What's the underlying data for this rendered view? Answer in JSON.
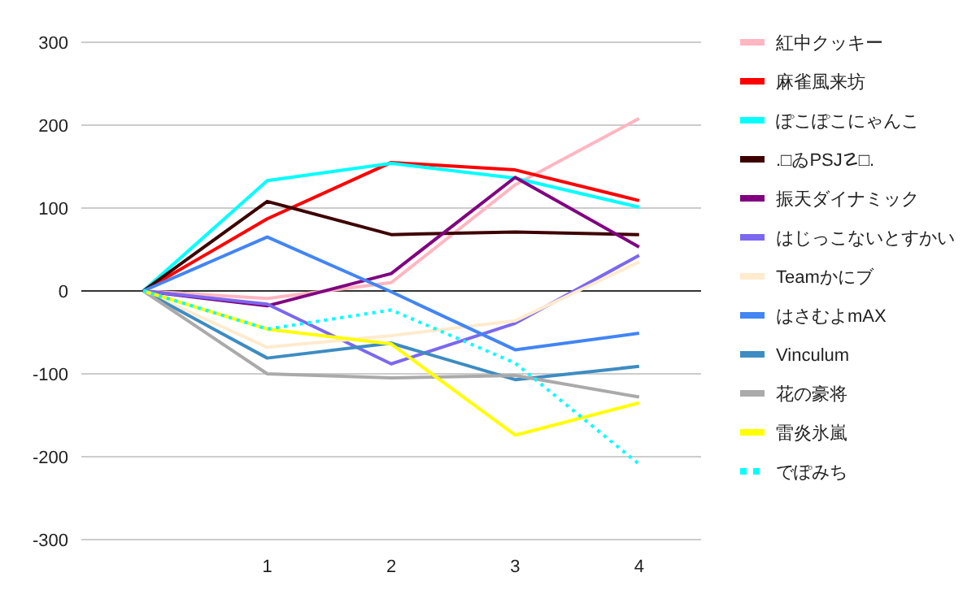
{
  "chart_data": {
    "type": "line",
    "categories": [
      null,
      "1",
      "2",
      "3",
      "4"
    ],
    "ylim": [
      -300,
      300
    ],
    "yticks": [
      -300,
      -200,
      -100,
      0,
      100,
      200,
      300
    ],
    "grid": "y",
    "legend": "right",
    "series": [
      {
        "name": "紅中クッキー",
        "color": "#ffb6c1",
        "values": [
          0,
          -9,
          10,
          128,
          208
        ]
      },
      {
        "name": "麻雀風来坊",
        "color": "#ff0000",
        "values": [
          0,
          87,
          155,
          146,
          109
        ]
      },
      {
        "name": "ぽこぽこにゃんこ",
        "color": "#00ffff",
        "values": [
          0,
          133,
          154,
          136,
          101
        ]
      },
      {
        "name": ".□ゐPSJ☡□.",
        "color": "#3d0000",
        "values": [
          0,
          108,
          68,
          71,
          68
        ]
      },
      {
        "name": "振天ダイナミック",
        "color": "#800080",
        "values": [
          0,
          -18,
          21,
          137,
          53
        ]
      },
      {
        "name": "はじっこないとすかい",
        "color": "#7b68ee",
        "values": [
          0,
          -16,
          -88,
          -39,
          43
        ]
      },
      {
        "name": "Teamかにブ",
        "color": "#ffebcd",
        "values": [
          0,
          -68,
          -54,
          -36,
          35
        ]
      },
      {
        "name": "はさむよmAX",
        "color": "#4285f4",
        "values": [
          0,
          65,
          -1,
          -71,
          -51
        ]
      },
      {
        "name": "Vinculum",
        "color": "#3d8cc2",
        "values": [
          0,
          -81,
          -63,
          -107,
          -91
        ]
      },
      {
        "name": "花の豪将",
        "color": "#aaaaaa",
        "values": [
          0,
          -100,
          -105,
          -102,
          -128
        ]
      },
      {
        "name": "雷炎氷嵐",
        "color": "#ffff00",
        "values": [
          0,
          -46,
          -64,
          -174,
          -135
        ]
      },
      {
        "name": "でぽみち",
        "color": "#00ffff",
        "line_style": "dotted",
        "values": [
          0,
          -46,
          -23,
          -87,
          -209
        ]
      }
    ]
  }
}
